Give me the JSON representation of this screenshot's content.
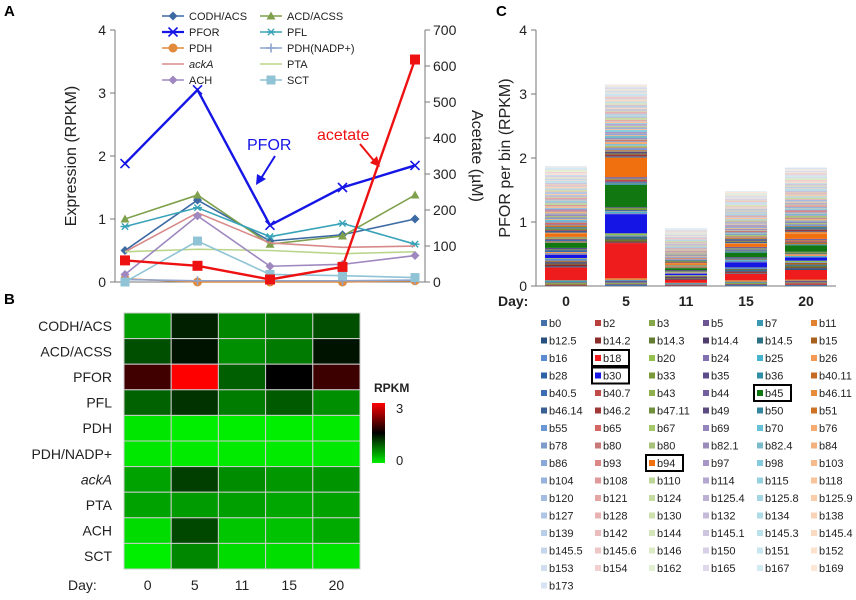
{
  "panels": {
    "a": {
      "letter": "A"
    },
    "b": {
      "letter": "B"
    },
    "c": {
      "letter": "C"
    }
  },
  "chart_data": [
    {
      "id": "A",
      "type": "line",
      "x": [
        "0",
        "5",
        "11",
        "15",
        "20"
      ],
      "ylabel": "Expression (RPKM)",
      "y2label": "Acetate (µM)",
      "ylim": [
        0,
        4
      ],
      "y2lim": [
        0,
        700
      ],
      "yticks": [
        "0",
        "1",
        "2",
        "3",
        "4"
      ],
      "y2ticks": [
        "0",
        "100",
        "200",
        "300",
        "400",
        "500",
        "600",
        "700"
      ],
      "series": [
        {
          "name": "CODH/ACS",
          "values": [
            0.5,
            1.3,
            0.65,
            0.75,
            1.0
          ],
          "color": "#3d6aa3",
          "marker": "diamond"
        },
        {
          "name": "ACD/ACSS",
          "values": [
            1.0,
            1.38,
            0.6,
            0.73,
            1.38
          ],
          "color": "#7fa04c",
          "marker": "triangle"
        },
        {
          "name": "PFOR",
          "values": [
            1.88,
            3.05,
            0.9,
            1.5,
            1.85
          ],
          "color": "#1515e6",
          "marker": "x"
        },
        {
          "name": "PFL",
          "values": [
            0.88,
            1.18,
            0.72,
            0.93,
            0.6
          ],
          "color": "#38a3b8",
          "marker": "star"
        },
        {
          "name": "PDH",
          "values": [
            0.05,
            0.0,
            0.0,
            0.0,
            0.02
          ],
          "color": "#e08a3a",
          "marker": "circle"
        },
        {
          "name": "PDH(NADP+)",
          "values": [
            0.04,
            0.02,
            0.02,
            0.02,
            0.03
          ],
          "color": "#8fa4cf",
          "marker": "plus"
        },
        {
          "name": "ackA",
          "values": [
            0.48,
            1.1,
            0.62,
            0.55,
            0.57
          ],
          "color": "#d88a8a",
          "marker": "none"
        },
        {
          "name": "PTA",
          "values": [
            0.48,
            0.52,
            0.5,
            0.45,
            0.48
          ],
          "color": "#b9d58a",
          "marker": "none"
        },
        {
          "name": "ACH",
          "values": [
            0.12,
            1.05,
            0.25,
            0.28,
            0.42
          ],
          "color": "#9f88c0",
          "marker": "diamond"
        },
        {
          "name": "SCT",
          "values": [
            0.0,
            0.65,
            0.12,
            0.1,
            0.07
          ],
          "color": "#8fc3d5",
          "marker": "square"
        }
      ],
      "secondary_series": {
        "name": "acetate",
        "axis": "right",
        "values": [
          60,
          45,
          7,
          42,
          618
        ],
        "color": "#ee1111",
        "marker": "square"
      },
      "annotations": [
        {
          "text": "PFOR",
          "color": "#1515e6"
        },
        {
          "text": "acetate",
          "color": "#ee1111"
        }
      ]
    },
    {
      "id": "B",
      "type": "heatmap",
      "rows": [
        "CODH/ACS",
        "ACD/ACSS",
        "PFOR",
        "PFL",
        "PDH",
        "PDH/NADP+",
        "ackA",
        "PTA",
        "ACH",
        "SCT"
      ],
      "columns": [
        "0",
        "5",
        "11",
        "15",
        "20"
      ],
      "xlabel": "Day:",
      "values": [
        [
          0.5,
          1.3,
          0.65,
          0.75,
          1.0
        ],
        [
          1.0,
          1.38,
          0.6,
          0.73,
          1.38
        ],
        [
          1.88,
          3.05,
          0.9,
          1.5,
          1.85
        ],
        [
          0.88,
          1.18,
          0.72,
          0.93,
          0.6
        ],
        [
          0.05,
          0.0,
          0.0,
          0.0,
          0.02
        ],
        [
          0.04,
          0.02,
          0.02,
          0.02,
          0.03
        ],
        [
          0.48,
          1.1,
          0.62,
          0.55,
          0.57
        ],
        [
          0.48,
          0.52,
          0.5,
          0.45,
          0.48
        ],
        [
          0.12,
          1.05,
          0.25,
          0.28,
          0.42
        ],
        [
          0.0,
          0.65,
          0.12,
          0.1,
          0.07
        ]
      ],
      "colorbar": {
        "title": "RPKM",
        "min": 0,
        "mid": 1.5,
        "max": 3,
        "ticks": [
          "0",
          "3"
        ],
        "low": "#00ee00",
        "midColor": "#000000",
        "high": "#ff0000"
      }
    },
    {
      "id": "C",
      "type": "bar",
      "stacked": true,
      "categories": [
        "0",
        "5",
        "11",
        "15",
        "20"
      ],
      "xlabel": "Day:",
      "ylabel": "PFOR per bin (RPKM)",
      "ylim": [
        0,
        4
      ],
      "yticks": [
        "0",
        "1",
        "2",
        "3",
        "4"
      ],
      "totals": [
        1.87,
        3.15,
        0.9,
        1.48,
        1.85
      ],
      "highlighted_bins": [
        "b18",
        "b30",
        "b45",
        "b94"
      ],
      "highlight_values": [
        {
          "bin": "b18",
          "values": [
            0.2,
            0.55,
            0.05,
            0.1,
            0.15
          ]
        },
        {
          "bin": "b30",
          "values": [
            0.05,
            0.3,
            0.02,
            0.08,
            0.05
          ]
        },
        {
          "bin": "b45",
          "values": [
            0.08,
            0.35,
            0.03,
            0.07,
            0.1
          ]
        },
        {
          "bin": "b94",
          "values": [
            0.05,
            0.3,
            0.02,
            0.05,
            0.08
          ]
        }
      ],
      "legend": [
        {
          "bin": "b0",
          "color": "#4472a8"
        },
        {
          "bin": "b2",
          "color": "#b8403c"
        },
        {
          "bin": "b3",
          "color": "#86a84a"
        },
        {
          "bin": "b5",
          "color": "#6b5593"
        },
        {
          "bin": "b7",
          "color": "#3b98b2"
        },
        {
          "bin": "b11",
          "color": "#e08230"
        },
        {
          "bin": "b12.5",
          "color": "#27507f"
        },
        {
          "bin": "b14.2",
          "color": "#8a2c2a"
        },
        {
          "bin": "b14.3",
          "color": "#637c32"
        },
        {
          "bin": "b14.4",
          "color": "#4f3e6d"
        },
        {
          "bin": "b14.5",
          "color": "#2c7286"
        },
        {
          "bin": "b15",
          "color": "#a8601f"
        },
        {
          "bin": "b16",
          "color": "#5b8bd0"
        },
        {
          "bin": "b18",
          "color": "#ee1c1c"
        },
        {
          "bin": "b20",
          "color": "#94c04f"
        },
        {
          "bin": "b24",
          "color": "#8370b0"
        },
        {
          "bin": "b25",
          "color": "#47b4cf"
        },
        {
          "bin": "b26",
          "color": "#f59a55"
        },
        {
          "bin": "b28",
          "color": "#2e62a6"
        },
        {
          "bin": "b30",
          "color": "#1515e6"
        },
        {
          "bin": "b33",
          "color": "#7a9a3a"
        },
        {
          "bin": "b35",
          "color": "#5d4a8a"
        },
        {
          "bin": "b36",
          "color": "#2e8ea6"
        },
        {
          "bin": "b40.11",
          "color": "#c46a22"
        },
        {
          "bin": "b40.5",
          "color": "#3d6eb5"
        },
        {
          "bin": "b40.7",
          "color": "#c04a47"
        },
        {
          "bin": "b43",
          "color": "#8fb04d"
        },
        {
          "bin": "b44",
          "color": "#735f9e"
        },
        {
          "bin": "b45",
          "color": "#117711"
        },
        {
          "bin": "b46.11",
          "color": "#e88b3a"
        },
        {
          "bin": "b46.14",
          "color": "#3a5f94"
        },
        {
          "bin": "b46.2",
          "color": "#9e3836"
        },
        {
          "bin": "b47.11",
          "color": "#72903c"
        },
        {
          "bin": "b49",
          "color": "#5c4b80"
        },
        {
          "bin": "b50",
          "color": "#34879e"
        },
        {
          "bin": "b51",
          "color": "#cc7326"
        },
        {
          "bin": "b55",
          "color": "#6d96d4"
        },
        {
          "bin": "b65",
          "color": "#d46664"
        },
        {
          "bin": "b67",
          "color": "#a6c86c"
        },
        {
          "bin": "b69",
          "color": "#9585bd"
        },
        {
          "bin": "b70",
          "color": "#66c0d6"
        },
        {
          "bin": "b76",
          "color": "#f7ab70"
        },
        {
          "bin": "b78",
          "color": "#7e9cc9"
        },
        {
          "bin": "b80",
          "color": "#c97a78"
        },
        {
          "bin": "b80",
          "color": "#a8c27a"
        },
        {
          "bin": "b82.1",
          "color": "#9b8cbb"
        },
        {
          "bin": "b82.4",
          "color": "#78bccc"
        },
        {
          "bin": "b84",
          "color": "#f2b27f"
        },
        {
          "bin": "b86",
          "color": "#8aa8d8"
        },
        {
          "bin": "b93",
          "color": "#dc8886"
        },
        {
          "bin": "b94",
          "color": "#f07010"
        },
        {
          "bin": "b97",
          "color": "#a797c7"
        },
        {
          "bin": "b98",
          "color": "#86cadb"
        },
        {
          "bin": "b103",
          "color": "#f7ba8a"
        },
        {
          "bin": "b104",
          "color": "#97b3dc"
        },
        {
          "bin": "b108",
          "color": "#e0999a"
        },
        {
          "bin": "b110",
          "color": "#bdd596"
        },
        {
          "bin": "b114",
          "color": "#b3a6cf"
        },
        {
          "bin": "b115",
          "color": "#95d0df"
        },
        {
          "bin": "b118",
          "color": "#f8c49a"
        },
        {
          "bin": "b120",
          "color": "#a3bce0"
        },
        {
          "bin": "b121",
          "color": "#e3a6a5"
        },
        {
          "bin": "b124",
          "color": "#c5dba2"
        },
        {
          "bin": "b125.4",
          "color": "#bcb1d4"
        },
        {
          "bin": "b125.8",
          "color": "#a2d6e3"
        },
        {
          "bin": "b125.9",
          "color": "#f9ccaa"
        },
        {
          "bin": "b127",
          "color": "#afc5e5"
        },
        {
          "bin": "b128",
          "color": "#e6b1b0"
        },
        {
          "bin": "b130",
          "color": "#cde0ae"
        },
        {
          "bin": "b132",
          "color": "#c5bbd9"
        },
        {
          "bin": "b134",
          "color": "#afdbe7"
        },
        {
          "bin": "b138",
          "color": "#fad3b6"
        },
        {
          "bin": "b139",
          "color": "#bacde8"
        },
        {
          "bin": "b142",
          "color": "#eabcbb"
        },
        {
          "bin": "b144",
          "color": "#d5e5bb"
        },
        {
          "bin": "b145.1",
          "color": "#cec5df"
        },
        {
          "bin": "b145.3",
          "color": "#bbe1eb"
        },
        {
          "bin": "b145.4",
          "color": "#fbdac2"
        },
        {
          "bin": "b145.5",
          "color": "#c5d5ec"
        },
        {
          "bin": "b145.6",
          "color": "#edc6c5"
        },
        {
          "bin": "b146",
          "color": "#dcebc6"
        },
        {
          "bin": "b150",
          "color": "#d7cfe5"
        },
        {
          "bin": "b151",
          "color": "#c7e6ef"
        },
        {
          "bin": "b152",
          "color": "#fce1cd"
        },
        {
          "bin": "b153",
          "color": "#d0ddef"
        },
        {
          "bin": "b154",
          "color": "#f0cfce"
        },
        {
          "bin": "b162",
          "color": "#e3efd1"
        },
        {
          "bin": "b165",
          "color": "#dfd8ea"
        },
        {
          "bin": "b167",
          "color": "#d2ebf2"
        },
        {
          "bin": "b169",
          "color": "#fde7d7"
        },
        {
          "bin": "b173",
          "color": "#d8e3f2"
        }
      ]
    }
  ]
}
